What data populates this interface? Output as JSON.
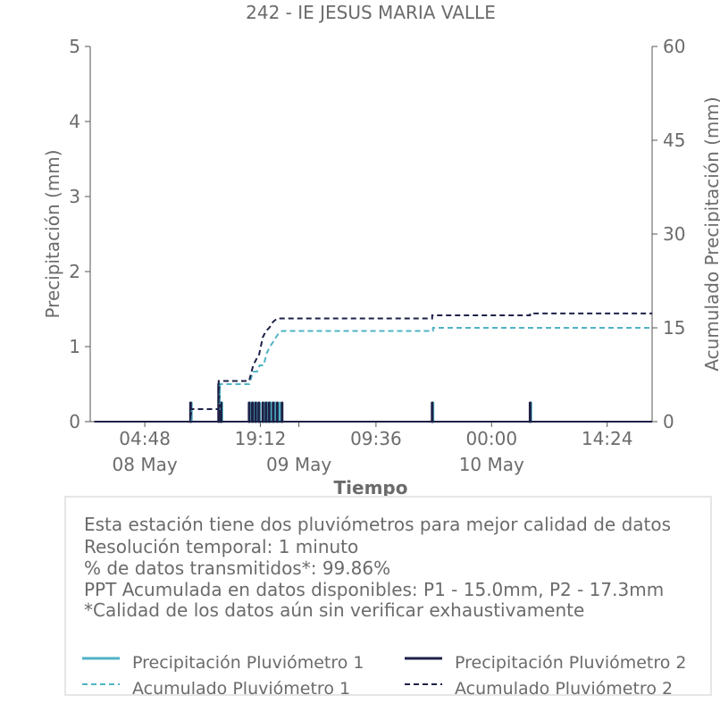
{
  "chart_data": {
    "type": "bar+line",
    "title": "242 - IE JESUS MARIA VALLE",
    "xlabel": "Tiempo",
    "ylabel_left": "Precipitación (mm)",
    "ylabel_right": "Acumulado Precipitación (mm)",
    "ylim_left": [
      0,
      5
    ],
    "ylim_right": [
      0,
      60
    ],
    "yticks_left": [
      "0",
      "1",
      "2",
      "3",
      "4",
      "5"
    ],
    "yticks_right": [
      "0",
      "15",
      "30",
      "45",
      "60"
    ],
    "x_range_hours": [
      -2,
      68
    ],
    "xticks": [
      {
        "h": 4.8,
        "label": "04:48",
        "date": "08 May"
      },
      {
        "h": 19.2,
        "label": "19:12",
        "date": ""
      },
      {
        "h": 24,
        "label": "",
        "date": "09 May"
      },
      {
        "h": 33.6,
        "label": "09:36",
        "date": ""
      },
      {
        "h": 48,
        "label": "00:00",
        "date": "10 May"
      },
      {
        "h": 62.4,
        "label": "14:24",
        "date": ""
      }
    ],
    "series": [
      {
        "name": "Precipitación Pluviómetro 1",
        "kind": "bar",
        "color": "#4fb3c5",
        "points": [
          [
            10.6,
            0.25
          ],
          [
            14.1,
            0.5
          ],
          [
            14.4,
            0.25
          ],
          [
            17.9,
            0.25
          ],
          [
            18.3,
            0.25
          ],
          [
            18.7,
            0.25
          ],
          [
            19.1,
            0.25
          ],
          [
            19.7,
            0.25
          ],
          [
            20.1,
            0.25
          ],
          [
            20.5,
            0.25
          ],
          [
            21.0,
            0.25
          ],
          [
            21.6,
            0.25
          ],
          [
            40.7,
            0.25
          ],
          [
            52.9,
            0.25
          ]
        ]
      },
      {
        "name": "Precipitación Pluviómetro 2",
        "kind": "bar",
        "color": "#1e2147",
        "points": [
          [
            10.5,
            0.25
          ],
          [
            14.0,
            0.5
          ],
          [
            14.3,
            0.25
          ],
          [
            17.8,
            0.25
          ],
          [
            18.2,
            0.25
          ],
          [
            18.6,
            0.25
          ],
          [
            19.0,
            0.25
          ],
          [
            19.5,
            0.25
          ],
          [
            19.9,
            0.25
          ],
          [
            20.3,
            0.25
          ],
          [
            20.8,
            0.25
          ],
          [
            21.3,
            0.25
          ],
          [
            21.9,
            0.25
          ],
          [
            40.6,
            0.25
          ],
          [
            52.8,
            0.25
          ]
        ]
      },
      {
        "name": "Acumulado Pluviómetro 1",
        "kind": "step",
        "color": "#4fb3c5",
        "points": [
          [
            -1.5,
            0
          ],
          [
            10.6,
            0
          ],
          [
            10.6,
            2
          ],
          [
            14.1,
            2
          ],
          [
            14.1,
            6
          ],
          [
            17.8,
            6
          ],
          [
            18.3,
            8
          ],
          [
            18.8,
            8
          ],
          [
            19.1,
            9
          ],
          [
            19.6,
            9
          ],
          [
            20.0,
            11
          ],
          [
            20.4,
            12
          ],
          [
            20.9,
            13
          ],
          [
            21.4,
            14
          ],
          [
            21.9,
            14.5
          ],
          [
            40.7,
            14.5
          ],
          [
            40.7,
            15.0
          ],
          [
            68,
            15.0
          ]
        ]
      },
      {
        "name": "Acumulado Pluviómetro 2",
        "kind": "step",
        "color": "#1e2147",
        "points": [
          [
            -1.5,
            0
          ],
          [
            10.5,
            0
          ],
          [
            10.5,
            2
          ],
          [
            14.0,
            2
          ],
          [
            14.0,
            6.5
          ],
          [
            17.8,
            6.5
          ],
          [
            18.3,
            9
          ],
          [
            18.7,
            10
          ],
          [
            19.0,
            10.5
          ],
          [
            19.5,
            13.5
          ],
          [
            19.9,
            14.5
          ],
          [
            20.3,
            15
          ],
          [
            20.8,
            16
          ],
          [
            21.3,
            16.5
          ],
          [
            40.6,
            16.5
          ],
          [
            40.6,
            17.0
          ],
          [
            52.8,
            17.0
          ],
          [
            52.8,
            17.3
          ],
          [
            68,
            17.3
          ]
        ]
      }
    ]
  },
  "info": {
    "lines": [
      "Esta estación tiene dos pluviómetros para mejor calidad de datos",
      "Resolución temporal: 1 minuto",
      "% de datos transmitidos*: 99.86%",
      "PPT Acumulada en datos disponibles: P1 - 15.0mm, P2 - 17.3mm",
      "*Calidad de los datos aún sin verificar exhaustivamente"
    ]
  },
  "legend": {
    "items": [
      {
        "label": "Precipitación Pluviómetro 1",
        "color": "#4fb3c5",
        "style": "solid"
      },
      {
        "label": "Precipitación Pluviómetro 2",
        "color": "#1e2147",
        "style": "solid"
      },
      {
        "label": "Acumulado Pluviómetro 1",
        "color": "#4fb3c5",
        "style": "dashed"
      },
      {
        "label": "Acumulado Pluviómetro 2",
        "color": "#1e2147",
        "style": "dashed"
      }
    ]
  }
}
